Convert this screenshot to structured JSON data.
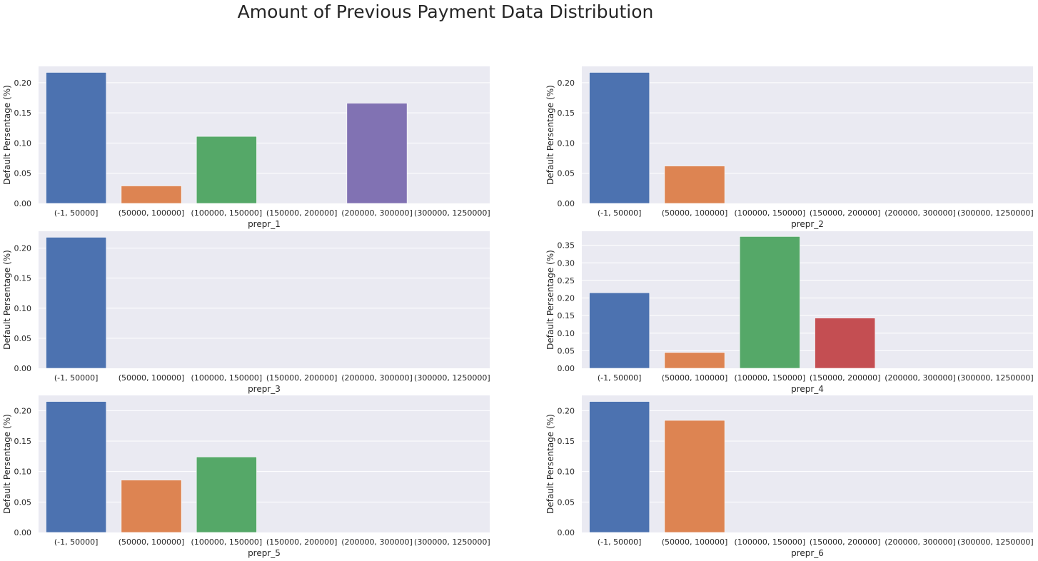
{
  "figure": {
    "title": "Amount of Previous Payment Data Distribution"
  },
  "palette": [
    "#4c72b0",
    "#dd8452",
    "#55a868",
    "#c44e52",
    "#8172b3",
    "#937860"
  ],
  "chart_data": [
    {
      "type": "bar",
      "title": "",
      "xlabel": "prepr_1",
      "ylabel": "Default Persentage (%)",
      "categories": [
        "(-1, 50000]",
        "(50000, 100000]",
        "(100000, 150000]",
        "(150000, 200000]",
        "(200000, 300000]",
        "(300000, 1250000]"
      ],
      "values": [
        0.217,
        0.029,
        0.111,
        0.0,
        0.166,
        0.0
      ],
      "ylim": [
        0,
        0.227
      ],
      "yticks": [
        0.0,
        0.05,
        0.1,
        0.15,
        0.2
      ],
      "grid": true
    },
    {
      "type": "bar",
      "title": "",
      "xlabel": "prepr_2",
      "ylabel": "Default Persentage (%)",
      "categories": [
        "(-1, 50000]",
        "(50000, 100000]",
        "(100000, 150000]",
        "(150000, 200000]",
        "(200000, 300000]",
        "(300000, 1250000]"
      ],
      "values": [
        0.217,
        0.062,
        0.0,
        0.0,
        0.0,
        0.0
      ],
      "ylim": [
        0,
        0.227
      ],
      "yticks": [
        0.0,
        0.05,
        0.1,
        0.15,
        0.2
      ],
      "grid": true
    },
    {
      "type": "bar",
      "title": "",
      "xlabel": "prepr_3",
      "ylabel": "Default Persentage (%)",
      "categories": [
        "(-1, 50000]",
        "(50000, 100000]",
        "(100000, 150000]",
        "(150000, 200000]",
        "(200000, 300000]",
        "(300000, 1250000]"
      ],
      "values": [
        0.218,
        0.0,
        0.0,
        0.0,
        0.0,
        0.0
      ],
      "ylim": [
        0,
        0.228
      ],
      "yticks": [
        0.0,
        0.05,
        0.1,
        0.15,
        0.2
      ],
      "grid": true
    },
    {
      "type": "bar",
      "title": "",
      "xlabel": "prepr_4",
      "ylabel": "Default Persentage (%)",
      "categories": [
        "(-1, 50000]",
        "(50000, 100000]",
        "(100000, 150000]",
        "(150000, 200000]",
        "(200000, 300000]",
        "(300000, 1250000]"
      ],
      "values": [
        0.215,
        0.045,
        0.375,
        0.143,
        0.0,
        0.0
      ],
      "ylim": [
        0,
        0.39
      ],
      "yticks": [
        0.0,
        0.05,
        0.1,
        0.15,
        0.2,
        0.25,
        0.3,
        0.35
      ],
      "grid": true
    },
    {
      "type": "bar",
      "title": "",
      "xlabel": "prepr_5",
      "ylabel": "Default Persentage (%)",
      "categories": [
        "(-1, 50000]",
        "(50000, 100000]",
        "(100000, 150000]",
        "(150000, 200000]",
        "(200000, 300000]",
        "(300000, 1250000]"
      ],
      "values": [
        0.215,
        0.086,
        0.124,
        0.0,
        0.0,
        0.0
      ],
      "ylim": [
        0,
        0.225
      ],
      "yticks": [
        0.0,
        0.05,
        0.1,
        0.15,
        0.2
      ],
      "grid": true
    },
    {
      "type": "bar",
      "title": "",
      "xlabel": "prepr_6",
      "ylabel": "Default Persentage (%)",
      "categories": [
        "(-1, 50000]",
        "(50000, 100000]",
        "(100000, 150000]",
        "(150000, 200000]",
        "(200000, 300000]",
        "(300000, 1250000]"
      ],
      "values": [
        0.215,
        0.184,
        0.0,
        0.0,
        0.0,
        0.0
      ],
      "ylim": [
        0,
        0.225
      ],
      "yticks": [
        0.0,
        0.05,
        0.1,
        0.15,
        0.2
      ],
      "grid": true
    }
  ]
}
